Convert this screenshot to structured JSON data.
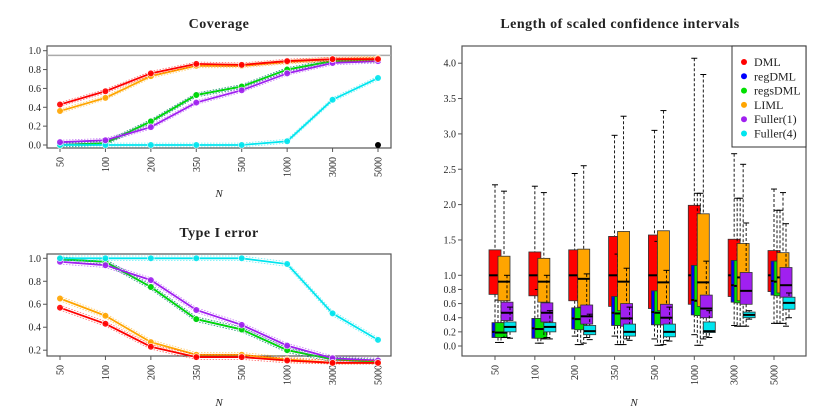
{
  "colors": {
    "DML": "#ff0000",
    "regDML": "#0000ff",
    "regsDML": "#00e000",
    "LIML": "#ffa500",
    "Fuller(1)": "#a020f0",
    "Fuller(4)": "#00e5ee"
  },
  "chart_data": [
    {
      "type": "line",
      "title": "Coverage",
      "xlabel": "N",
      "ylabel": "",
      "categories": [
        "50",
        "100",
        "200",
        "350",
        "500",
        "1000",
        "3000",
        "5000"
      ],
      "ylim": [
        0,
        1
      ],
      "yticks": [
        "0.0",
        "0.2",
        "0.4",
        "0.6",
        "0.8",
        "1.0"
      ],
      "reference_line": 0.95,
      "series": [
        {
          "name": "regDML",
          "values": [
            0.0,
            0.02,
            0.25,
            0.53,
            0.62,
            0.8,
            0.89,
            0.9
          ]
        },
        {
          "name": "regsDML",
          "values": [
            0.0,
            0.02,
            0.25,
            0.53,
            0.62,
            0.8,
            0.89,
            0.9
          ]
        },
        {
          "name": "Fuller(4)",
          "values": [
            0.0,
            0.0,
            0.0,
            0.0,
            0.0,
            0.04,
            0.48,
            0.71
          ]
        },
        {
          "name": "Fuller(1)",
          "values": [
            0.03,
            0.05,
            0.19,
            0.45,
            0.58,
            0.76,
            0.87,
            0.89
          ]
        },
        {
          "name": "LIML",
          "values": [
            0.36,
            0.5,
            0.73,
            0.84,
            0.84,
            0.88,
            0.91,
            0.92
          ]
        },
        {
          "name": "DML",
          "values": [
            0.43,
            0.57,
            0.76,
            0.86,
            0.85,
            0.89,
            0.91,
            0.91
          ]
        }
      ],
      "extra_point": {
        "x": "5000",
        "y": 0.0,
        "color": "#000000"
      }
    },
    {
      "type": "line",
      "title": "Type I error",
      "xlabel": "N",
      "ylabel": "",
      "categories": [
        "50",
        "100",
        "200",
        "350",
        "500",
        "1000",
        "3000",
        "5000"
      ],
      "ylim": [
        0.1,
        1
      ],
      "yticks": [
        "0.2",
        "0.4",
        "0.6",
        "0.8",
        "1.0"
      ],
      "series": [
        {
          "name": "regDML",
          "values": [
            0.99,
            0.97,
            0.75,
            0.47,
            0.38,
            0.2,
            0.12,
            0.1
          ]
        },
        {
          "name": "regsDML",
          "values": [
            0.99,
            0.97,
            0.75,
            0.47,
            0.38,
            0.2,
            0.12,
            0.1
          ]
        },
        {
          "name": "Fuller(1)",
          "values": [
            0.97,
            0.94,
            0.81,
            0.55,
            0.42,
            0.24,
            0.13,
            0.11
          ]
        },
        {
          "name": "Fuller(4)",
          "values": [
            1.0,
            1.0,
            1.0,
            1.0,
            1.0,
            0.95,
            0.52,
            0.29
          ]
        },
        {
          "name": "LIML",
          "values": [
            0.65,
            0.5,
            0.27,
            0.16,
            0.16,
            0.12,
            0.09,
            0.09
          ]
        },
        {
          "name": "DML",
          "values": [
            0.57,
            0.43,
            0.23,
            0.14,
            0.14,
            0.11,
            0.09,
            0.09
          ]
        }
      ]
    },
    {
      "type": "box",
      "title": "Length of scaled confidence intervals",
      "xlabel": "N",
      "ylabel": "",
      "categories": [
        "50",
        "100",
        "200",
        "350",
        "500",
        "1000",
        "3000",
        "5000"
      ],
      "ylim": [
        0,
        4.2
      ],
      "yticks": [
        "0.0",
        "0.2",
        "0.4",
        "0.6",
        "0.8",
        "1.0",
        "1.5",
        "2.0",
        "2.5",
        "3.0",
        "3.5",
        "4.0"
      ],
      "legend": {
        "position": "top-right",
        "entries": [
          "DML",
          "regDML",
          "regsDML",
          "LIML",
          "Fuller(1)",
          "Fuller(4)"
        ]
      },
      "stat_order": [
        "low_whisker",
        "q1",
        "median",
        "q3",
        "high_whisker"
      ],
      "series": [
        {
          "name": "DML",
          "values": [
            [
              0.3,
              0.73,
              1.0,
              1.36,
              2.28
            ],
            [
              0.3,
              0.71,
              1.0,
              1.33,
              2.26
            ],
            [
              0.14,
              0.64,
              1.0,
              1.36,
              2.44
            ],
            [
              0.14,
              0.56,
              1.0,
              1.55,
              2.98
            ],
            [
              0.1,
              0.53,
              1.0,
              1.57,
              3.05
            ],
            [
              0.16,
              0.59,
              1.0,
              1.99,
              4.07
            ],
            [
              0.29,
              0.7,
              1.0,
              1.51,
              2.72
            ],
            [
              0.32,
              0.77,
              1.0,
              1.35,
              2.22
            ]
          ]
        },
        {
          "name": "regDML",
          "values": [
            [
              0.05,
              0.12,
              0.2,
              0.33,
              0.65
            ],
            [
              0.04,
              0.11,
              0.25,
              0.39,
              0.8
            ],
            [
              0.02,
              0.24,
              0.39,
              0.54,
              1.0
            ],
            [
              0.02,
              0.29,
              0.47,
              0.7,
              1.3
            ],
            [
              0.01,
              0.3,
              0.48,
              0.78,
              1.48
            ],
            [
              0.01,
              0.44,
              0.65,
              1.14,
              2.16
            ],
            [
              0.28,
              0.62,
              0.86,
              1.21,
              2.09
            ],
            [
              0.32,
              0.72,
              0.92,
              1.2,
              1.92
            ]
          ]
        },
        {
          "name": "regsDML",
          "values": [
            [
              0.05,
              0.12,
              0.19,
              0.33,
              0.65
            ],
            [
              0.04,
              0.11,
              0.24,
              0.39,
              0.8
            ],
            [
              0.02,
              0.23,
              0.38,
              0.54,
              1.0
            ],
            [
              0.02,
              0.29,
              0.46,
              0.7,
              1.3
            ],
            [
              0.01,
              0.3,
              0.47,
              0.78,
              1.48
            ],
            [
              0.01,
              0.43,
              0.64,
              1.14,
              2.16
            ],
            [
              0.28,
              0.61,
              0.85,
              1.21,
              2.09
            ],
            [
              0.32,
              0.71,
              0.91,
              1.2,
              1.92
            ]
          ]
        },
        {
          "name": "LIML",
          "values": [
            [
              0.12,
              0.64,
              0.91,
              1.27,
              2.19
            ],
            [
              0.1,
              0.62,
              0.91,
              1.24,
              2.17
            ],
            [
              0.04,
              0.55,
              0.95,
              1.37,
              2.55
            ],
            [
              0.02,
              0.5,
              0.91,
              1.62,
              3.25
            ],
            [
              0.02,
              0.5,
              0.9,
              1.63,
              3.33
            ],
            [
              0.1,
              0.56,
              0.9,
              1.87,
              3.84
            ],
            [
              0.28,
              0.64,
              0.97,
              1.45,
              2.57
            ],
            [
              0.32,
              0.75,
              0.97,
              1.32,
              2.17
            ]
          ]
        },
        {
          "name": "Fuller(1)",
          "values": [
            [
              0.12,
              0.36,
              0.47,
              0.62,
              1.0
            ],
            [
              0.12,
              0.34,
              0.47,
              0.61,
              1.0
            ],
            [
              0.12,
              0.31,
              0.42,
              0.58,
              1.02
            ],
            [
              0.1,
              0.28,
              0.39,
              0.6,
              1.1
            ],
            [
              0.08,
              0.3,
              0.4,
              0.59,
              1.07
            ],
            [
              0.13,
              0.4,
              0.53,
              0.72,
              1.2
            ],
            [
              0.28,
              0.59,
              0.78,
              1.04,
              1.74
            ],
            [
              0.28,
              0.69,
              0.86,
              1.11,
              1.73
            ]
          ]
        },
        {
          "name": "Fuller(4)",
          "values": [
            [
              0.11,
              0.2,
              0.27,
              0.34,
              0.55
            ],
            [
              0.1,
              0.2,
              0.27,
              0.33,
              0.5
            ],
            [
              0.09,
              0.16,
              0.21,
              0.29,
              0.45
            ],
            [
              0.08,
              0.14,
              0.2,
              0.31,
              0.55
            ],
            [
              0.07,
              0.13,
              0.2,
              0.31,
              0.55
            ],
            [
              0.12,
              0.19,
              0.21,
              0.34,
              0.5
            ],
            [
              0.38,
              0.4,
              0.44,
              0.48,
              0.5
            ],
            [
              0.4,
              0.52,
              0.61,
              0.69,
              0.75
            ]
          ]
        }
      ]
    }
  ]
}
